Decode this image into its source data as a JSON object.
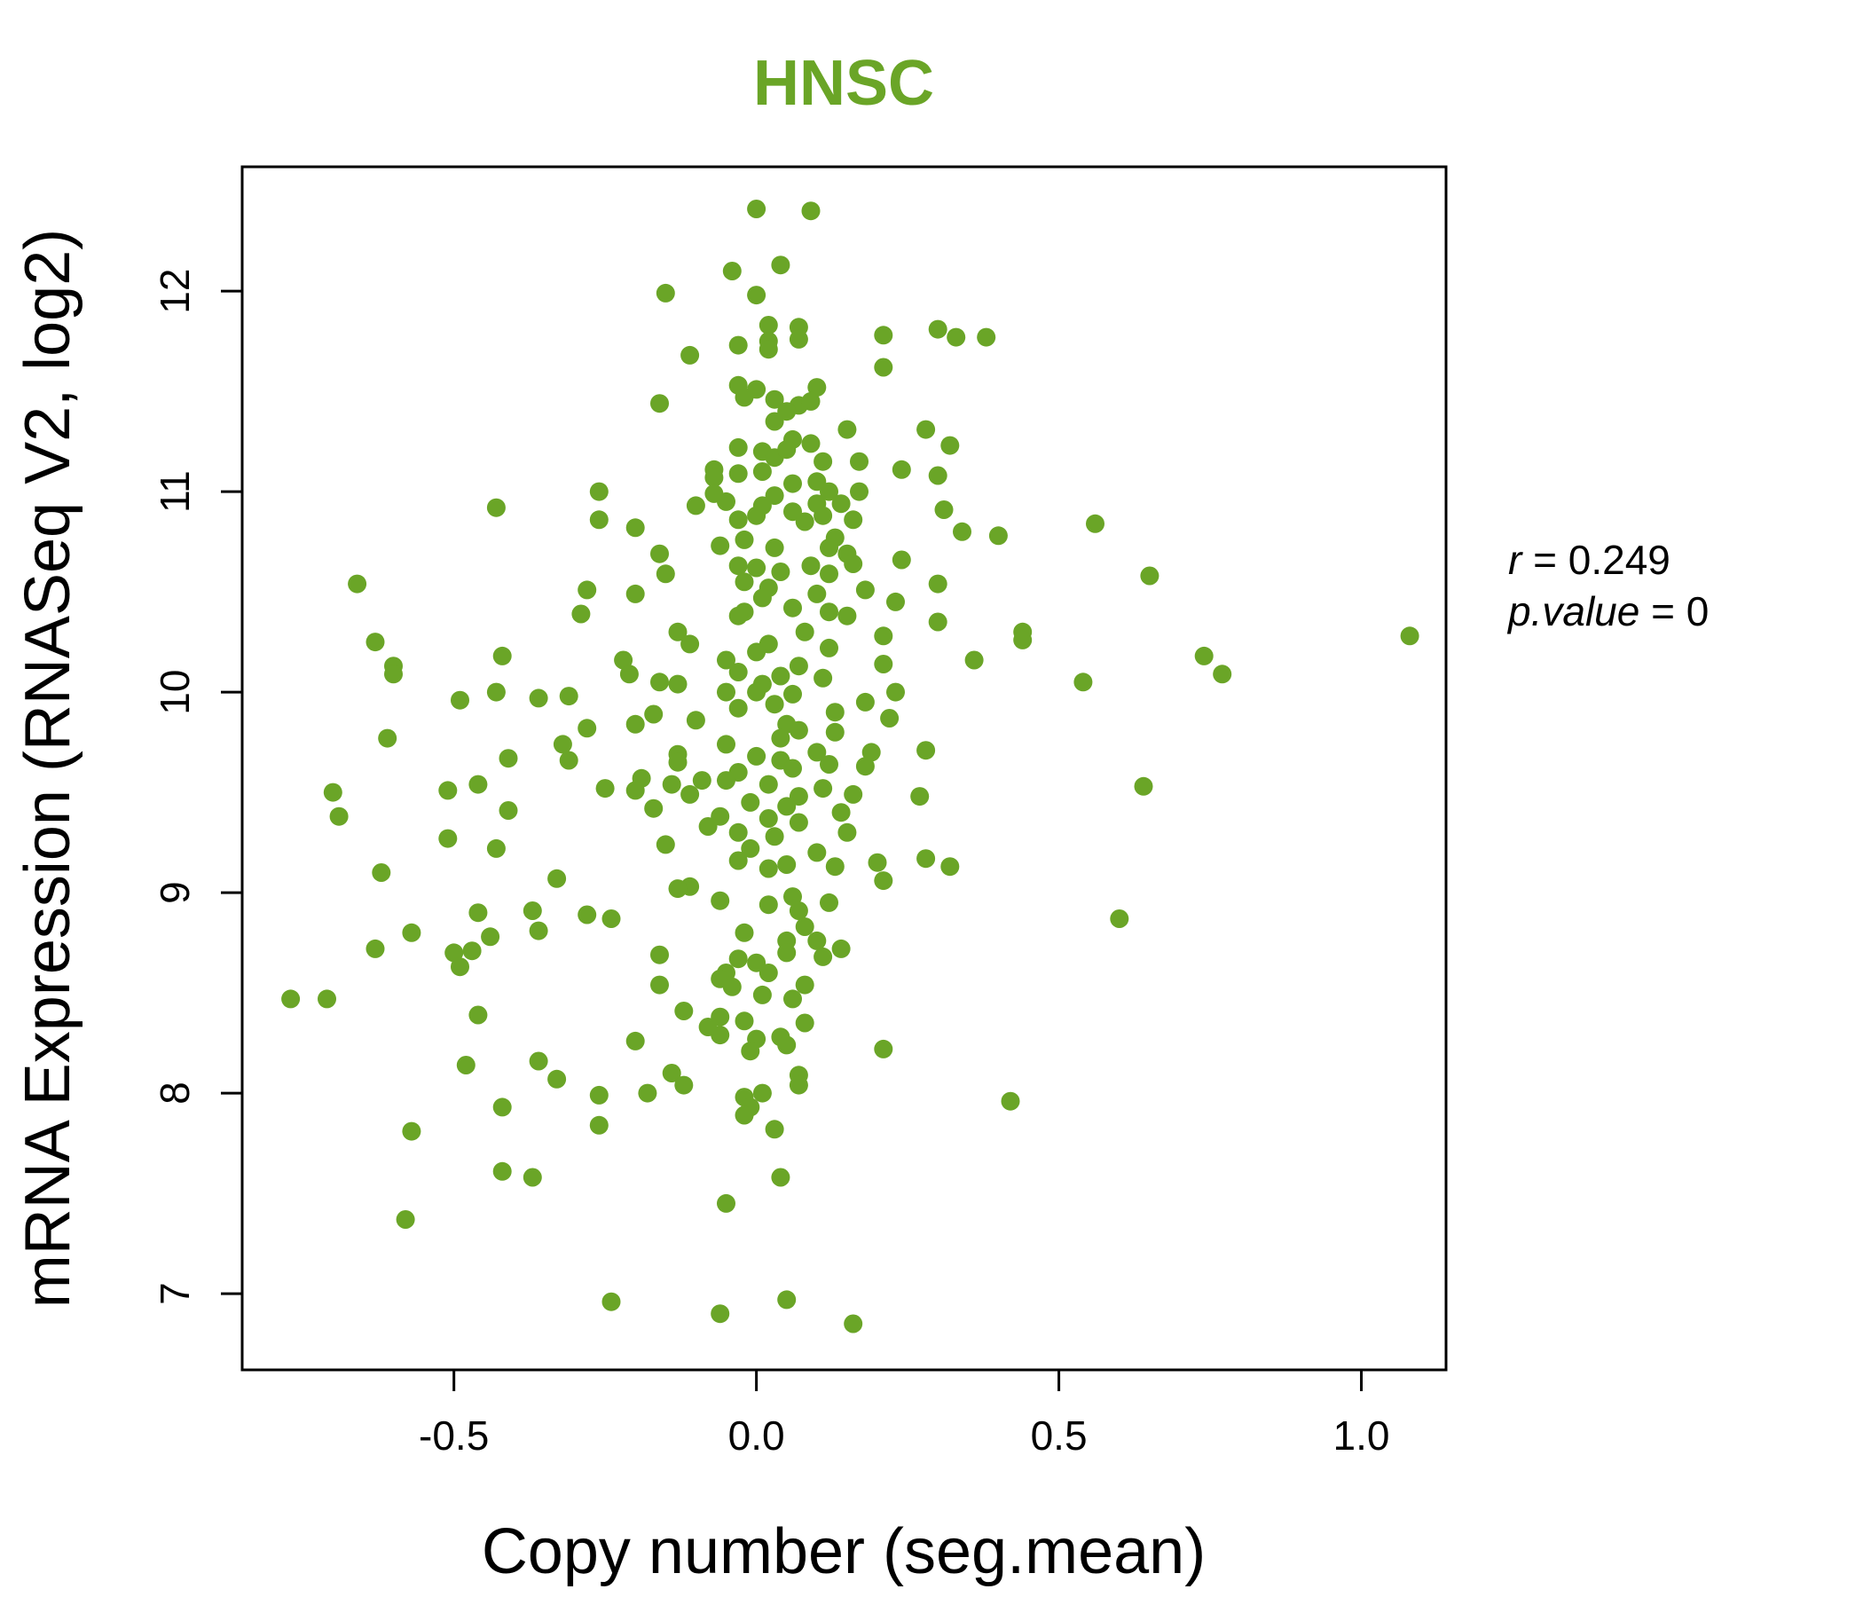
{
  "chart_data": {
    "type": "scatter",
    "title": "HNSC",
    "xlabel": "Copy number (seg.mean)",
    "ylabel": "mRNA Expression (RNASeq V2, log2)",
    "xlim": [
      -0.85,
      1.14
    ],
    "ylim": [
      6.62,
      12.62
    ],
    "x_ticks": [
      -0.5,
      0.0,
      0.5,
      1.0
    ],
    "x_tick_labels": [
      "-0.5",
      "0.0",
      "0.5",
      "1.0"
    ],
    "y_ticks": [
      7,
      8,
      9,
      10,
      11,
      12
    ],
    "y_tick_labels": [
      "7",
      "8",
      "9",
      "10",
      "11",
      "12"
    ],
    "grid": false,
    "point_color": "#6aa527",
    "title_color": "#6aa527",
    "annotations": {
      "r_label": "r",
      "r_value": "0.249",
      "p_label": "p.value",
      "p_value": "0"
    },
    "points": [
      [
        0.0,
        12.41
      ],
      [
        0.09,
        12.4
      ],
      [
        0.04,
        12.13
      ],
      [
        -0.04,
        12.1
      ],
      [
        0.0,
        11.98
      ],
      [
        -0.15,
        11.99
      ],
      [
        0.02,
        11.83
      ],
      [
        0.07,
        11.82
      ],
      [
        0.02,
        11.75
      ],
      [
        0.02,
        11.71
      ],
      [
        0.07,
        11.76
      ],
      [
        -0.03,
        11.73
      ],
      [
        0.21,
        11.78
      ],
      [
        0.3,
        11.81
      ],
      [
        0.33,
        11.77
      ],
      [
        0.38,
        11.77
      ],
      [
        -0.11,
        11.68
      ],
      [
        0.21,
        11.62
      ],
      [
        -0.03,
        11.53
      ],
      [
        0.0,
        11.51
      ],
      [
        0.03,
        11.46
      ],
      [
        0.07,
        11.43
      ],
      [
        0.1,
        11.52
      ],
      [
        -0.02,
        11.47
      ],
      [
        0.09,
        11.45
      ],
      [
        -0.16,
        11.44
      ],
      [
        0.05,
        11.4
      ],
      [
        0.03,
        11.35
      ],
      [
        0.15,
        11.31
      ],
      [
        0.28,
        11.31
      ],
      [
        0.06,
        11.26
      ],
      [
        0.09,
        11.24
      ],
      [
        0.32,
        11.23
      ],
      [
        -0.03,
        11.22
      ],
      [
        0.01,
        11.2
      ],
      [
        0.03,
        11.17
      ],
      [
        0.05,
        11.21
      ],
      [
        0.11,
        11.15
      ],
      [
        0.17,
        11.15
      ],
      [
        0.24,
        11.11
      ],
      [
        -0.07,
        11.11
      ],
      [
        -0.07,
        11.07
      ],
      [
        -0.03,
        11.09
      ],
      [
        0.01,
        11.1
      ],
      [
        0.1,
        11.05
      ],
      [
        0.3,
        11.08
      ],
      [
        0.06,
        11.04
      ],
      [
        0.12,
        11.0
      ],
      [
        0.17,
        11.0
      ],
      [
        -0.26,
        11.0
      ],
      [
        -0.07,
        10.99
      ],
      [
        -0.05,
        10.95
      ],
      [
        0.03,
        10.98
      ],
      [
        0.1,
        10.94
      ],
      [
        0.14,
        10.94
      ],
      [
        0.31,
        10.91
      ],
      [
        -0.43,
        10.92
      ],
      [
        -0.1,
        10.93
      ],
      [
        0.01,
        10.93
      ],
      [
        0.06,
        10.9
      ],
      [
        0.11,
        10.88
      ],
      [
        0.16,
        10.86
      ],
      [
        -0.26,
        10.86
      ],
      [
        -0.03,
        10.86
      ],
      [
        0.0,
        10.88
      ],
      [
        0.08,
        10.85
      ],
      [
        0.56,
        10.84
      ],
      [
        -0.2,
        10.82
      ],
      [
        0.34,
        10.8
      ],
      [
        0.4,
        10.78
      ],
      [
        0.13,
        10.77
      ],
      [
        -0.06,
        10.73
      ],
      [
        -0.02,
        10.76
      ],
      [
        0.03,
        10.72
      ],
      [
        0.12,
        10.72
      ],
      [
        0.15,
        10.69
      ],
      [
        -0.16,
        10.69
      ],
      [
        0.24,
        10.66
      ],
      [
        0.09,
        10.63
      ],
      [
        0.16,
        10.64
      ],
      [
        -0.03,
        10.63
      ],
      [
        0.0,
        10.62
      ],
      [
        0.04,
        10.6
      ],
      [
        0.12,
        10.59
      ],
      [
        -0.15,
        10.59
      ],
      [
        0.65,
        10.58
      ],
      [
        -0.66,
        10.54
      ],
      [
        0.3,
        10.54
      ],
      [
        -0.02,
        10.55
      ],
      [
        0.02,
        10.52
      ],
      [
        -0.28,
        10.51
      ],
      [
        0.18,
        10.51
      ],
      [
        -0.2,
        10.49
      ],
      [
        0.1,
        10.49
      ],
      [
        0.01,
        10.47
      ],
      [
        0.23,
        10.45
      ],
      [
        0.06,
        10.42
      ],
      [
        -0.02,
        10.4
      ],
      [
        0.12,
        10.4
      ],
      [
        -0.03,
        10.38
      ],
      [
        -0.29,
        10.39
      ],
      [
        0.3,
        10.35
      ],
      [
        0.15,
        10.38
      ],
      [
        0.08,
        10.3
      ],
      [
        0.44,
        10.3
      ],
      [
        -0.13,
        10.3
      ],
      [
        0.21,
        10.28
      ],
      [
        1.08,
        10.28
      ],
      [
        -0.63,
        10.25
      ],
      [
        0.44,
        10.26
      ],
      [
        -0.11,
        10.24
      ],
      [
        0.02,
        10.24
      ],
      [
        0.12,
        10.22
      ],
      [
        0.0,
        10.2
      ],
      [
        -0.42,
        10.18
      ],
      [
        0.74,
        10.18
      ],
      [
        -0.22,
        10.16
      ],
      [
        0.36,
        10.16
      ],
      [
        -0.05,
        10.16
      ],
      [
        0.21,
        10.14
      ],
      [
        0.07,
        10.13
      ],
      [
        -0.6,
        10.13
      ],
      [
        -0.6,
        10.09
      ],
      [
        0.77,
        10.09
      ],
      [
        -0.21,
        10.09
      ],
      [
        -0.03,
        10.1
      ],
      [
        0.04,
        10.08
      ],
      [
        0.11,
        10.07
      ],
      [
        0.54,
        10.05
      ],
      [
        -0.16,
        10.05
      ],
      [
        -0.13,
        10.04
      ],
      [
        0.01,
        10.04
      ],
      [
        -0.43,
        10.0
      ],
      [
        0.23,
        10.0
      ],
      [
        -0.05,
        10.0
      ],
      [
        0.0,
        10.0
      ],
      [
        0.06,
        9.99
      ],
      [
        -0.36,
        9.97
      ],
      [
        -0.31,
        9.98
      ],
      [
        -0.49,
        9.96
      ],
      [
        0.18,
        9.95
      ],
      [
        0.03,
        9.94
      ],
      [
        0.13,
        9.9
      ],
      [
        -0.17,
        9.89
      ],
      [
        -0.03,
        9.92
      ],
      [
        0.22,
        9.87
      ],
      [
        -0.1,
        9.86
      ],
      [
        -0.2,
        9.84
      ],
      [
        0.05,
        9.84
      ],
      [
        -0.28,
        9.82
      ],
      [
        0.13,
        9.8
      ],
      [
        0.07,
        9.81
      ],
      [
        -0.61,
        9.77
      ],
      [
        0.04,
        9.77
      ],
      [
        -0.05,
        9.74
      ],
      [
        -0.32,
        9.74
      ],
      [
        0.28,
        9.71
      ],
      [
        0.19,
        9.7
      ],
      [
        0.1,
        9.7
      ],
      [
        -0.13,
        9.69
      ],
      [
        0.0,
        9.68
      ],
      [
        -0.41,
        9.67
      ],
      [
        -0.31,
        9.66
      ],
      [
        0.04,
        9.66
      ],
      [
        -0.13,
        9.65
      ],
      [
        0.12,
        9.64
      ],
      [
        0.18,
        9.63
      ],
      [
        0.06,
        9.62
      ],
      [
        -0.03,
        9.6
      ],
      [
        -0.19,
        9.57
      ],
      [
        -0.09,
        9.56
      ],
      [
        -0.05,
        9.56
      ],
      [
        0.64,
        9.53
      ],
      [
        -0.14,
        9.54
      ],
      [
        0.02,
        9.54
      ],
      [
        0.11,
        9.52
      ],
      [
        -0.46,
        9.54
      ],
      [
        -0.25,
        9.52
      ],
      [
        -0.2,
        9.51
      ],
      [
        -0.51,
        9.51
      ],
      [
        -0.7,
        9.5
      ],
      [
        0.16,
        9.49
      ],
      [
        0.07,
        9.48
      ],
      [
        0.27,
        9.48
      ],
      [
        -0.11,
        9.49
      ],
      [
        -0.17,
        9.42
      ],
      [
        -0.01,
        9.45
      ],
      [
        0.05,
        9.43
      ],
      [
        0.14,
        9.4
      ],
      [
        -0.41,
        9.41
      ],
      [
        -0.69,
        9.38
      ],
      [
        -0.06,
        9.38
      ],
      [
        0.02,
        9.37
      ],
      [
        0.07,
        9.35
      ],
      [
        -0.08,
        9.33
      ],
      [
        0.15,
        9.3
      ],
      [
        -0.03,
        9.3
      ],
      [
        0.03,
        9.28
      ],
      [
        -0.51,
        9.27
      ],
      [
        -0.43,
        9.22
      ],
      [
        -0.15,
        9.24
      ],
      [
        -0.01,
        9.22
      ],
      [
        0.1,
        9.2
      ],
      [
        0.2,
        9.15
      ],
      [
        0.28,
        9.17
      ],
      [
        0.32,
        9.13
      ],
      [
        0.05,
        9.14
      ],
      [
        -0.62,
        9.1
      ],
      [
        -0.03,
        9.16
      ],
      [
        0.02,
        9.12
      ],
      [
        0.13,
        9.13
      ],
      [
        -0.33,
        9.07
      ],
      [
        0.21,
        9.06
      ],
      [
        -0.11,
        9.03
      ],
      [
        -0.13,
        9.02
      ],
      [
        0.06,
        8.98
      ],
      [
        0.12,
        8.95
      ],
      [
        -0.06,
        8.96
      ],
      [
        0.07,
        8.91
      ],
      [
        -0.37,
        8.91
      ],
      [
        -0.46,
        8.9
      ],
      [
        0.02,
        8.94
      ],
      [
        -0.28,
        8.89
      ],
      [
        -0.24,
        8.87
      ],
      [
        0.6,
        8.87
      ],
      [
        0.08,
        8.83
      ],
      [
        -0.36,
        8.81
      ],
      [
        -0.57,
        8.8
      ],
      [
        -0.02,
        8.8
      ],
      [
        0.05,
        8.76
      ],
      [
        -0.44,
        8.78
      ],
      [
        0.1,
        8.76
      ],
      [
        -0.63,
        8.72
      ],
      [
        -0.47,
        8.71
      ],
      [
        0.14,
        8.72
      ],
      [
        -0.5,
        8.7
      ],
      [
        -0.16,
        8.69
      ],
      [
        0.05,
        8.7
      ],
      [
        0.11,
        8.68
      ],
      [
        -0.03,
        8.67
      ],
      [
        0.0,
        8.65
      ],
      [
        0.02,
        8.6
      ],
      [
        -0.49,
        8.63
      ],
      [
        -0.05,
        8.6
      ],
      [
        -0.06,
        8.57
      ],
      [
        0.08,
        8.54
      ],
      [
        -0.16,
        8.54
      ],
      [
        0.06,
        8.47
      ],
      [
        -0.04,
        8.53
      ],
      [
        0.01,
        8.49
      ],
      [
        -0.77,
        8.47
      ],
      [
        -0.71,
        8.47
      ],
      [
        -0.12,
        8.41
      ],
      [
        -0.46,
        8.39
      ],
      [
        -0.06,
        8.38
      ],
      [
        -0.02,
        8.36
      ],
      [
        0.08,
        8.35
      ],
      [
        -0.08,
        8.33
      ],
      [
        -0.06,
        8.29
      ],
      [
        0.04,
        8.28
      ],
      [
        -0.2,
        8.26
      ],
      [
        0.0,
        8.27
      ],
      [
        0.05,
        8.24
      ],
      [
        0.21,
        8.22
      ],
      [
        -0.01,
        8.21
      ],
      [
        -0.36,
        8.16
      ],
      [
        -0.48,
        8.14
      ],
      [
        -0.14,
        8.1
      ],
      [
        0.07,
        8.09
      ],
      [
        -0.33,
        8.07
      ],
      [
        -0.12,
        8.04
      ],
      [
        0.07,
        8.04
      ],
      [
        -0.18,
        8.0
      ],
      [
        -0.26,
        7.99
      ],
      [
        0.01,
        8.0
      ],
      [
        -0.02,
        7.98
      ],
      [
        0.42,
        7.96
      ],
      [
        -0.42,
        7.93
      ],
      [
        -0.01,
        7.93
      ],
      [
        -0.02,
        7.89
      ],
      [
        -0.26,
        7.84
      ],
      [
        0.03,
        7.82
      ],
      [
        -0.57,
        7.81
      ],
      [
        -0.42,
        7.61
      ],
      [
        -0.37,
        7.58
      ],
      [
        0.04,
        7.58
      ],
      [
        -0.05,
        7.45
      ],
      [
        -0.58,
        7.37
      ],
      [
        -0.24,
        6.96
      ],
      [
        0.05,
        6.97
      ],
      [
        -0.06,
        6.9
      ],
      [
        0.16,
        6.85
      ]
    ]
  }
}
